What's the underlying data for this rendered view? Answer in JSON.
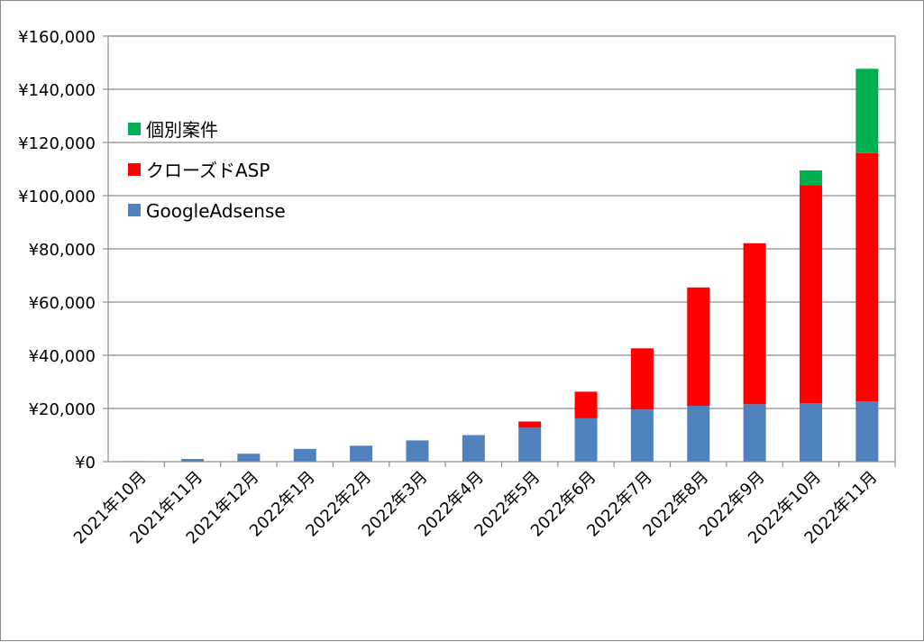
{
  "chart_data": {
    "type": "bar",
    "stacked": true,
    "categories": [
      "2021年10月",
      "2021年11月",
      "2021年12月",
      "2022年1月",
      "2022年2月",
      "2022年3月",
      "2022年4月",
      "2022年5月",
      "2022年6月",
      "2022年7月",
      "2022年8月",
      "2022年9月",
      "2022年10月",
      "2022年11月"
    ],
    "series": [
      {
        "name": "GoogleAdsense",
        "color": "#4f81bd",
        "values": [
          200,
          1000,
          3000,
          4800,
          6000,
          8000,
          10000,
          12800,
          16300,
          19600,
          21000,
          21600,
          22000,
          22700
        ]
      },
      {
        "name": "クローズドASP",
        "color": "#ff0000",
        "values": [
          0,
          0,
          0,
          0,
          0,
          0,
          0,
          2300,
          10000,
          23000,
          44500,
          60500,
          82000,
          93300
        ]
      },
      {
        "name": "個別案件",
        "color": "#00b050",
        "values": [
          0,
          0,
          0,
          0,
          0,
          0,
          0,
          0,
          0,
          0,
          0,
          0,
          5500,
          31700
        ]
      }
    ],
    "yticks": [
      "¥0",
      "¥20,000",
      "¥40,000",
      "¥60,000",
      "¥80,000",
      "¥100,000",
      "¥120,000",
      "¥140,000",
      "¥160,000"
    ],
    "ylim": [
      0,
      160000
    ],
    "grid": true,
    "legend_position": "top-left"
  }
}
